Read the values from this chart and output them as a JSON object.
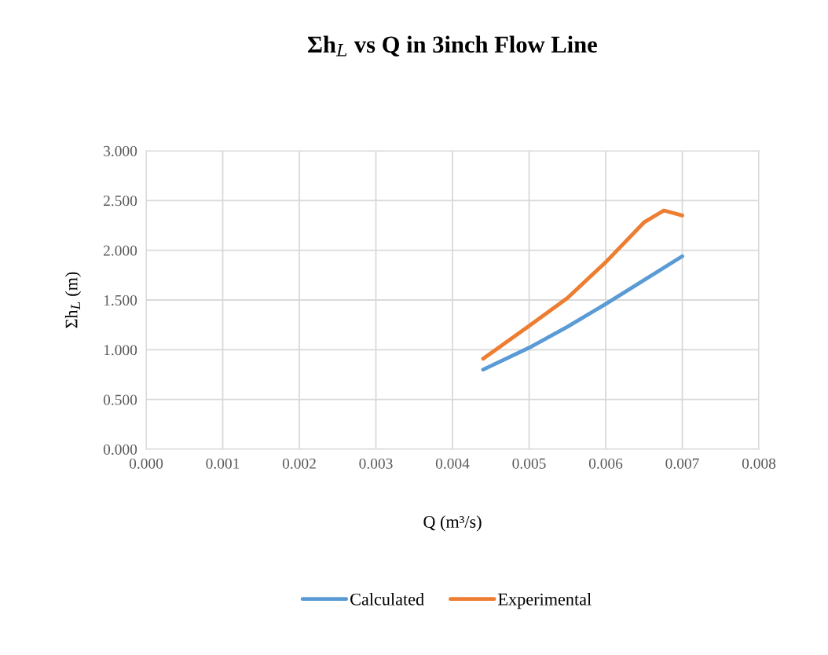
{
  "chart_data": {
    "type": "line",
    "title": "Σh$_{L}$ vs Q in 3inch Flow Line",
    "xlabel": "Q (m³/s)",
    "ylabel": "Σh$_{L}$ (m)",
    "series": [
      {
        "name": "Calculated",
        "color": "#5b9bd5",
        "x": [
          0.0044,
          0.005,
          0.0055,
          0.006,
          0.007
        ],
        "values": [
          0.8,
          1.02,
          1.23,
          1.46,
          1.94
        ]
      },
      {
        "name": "Experimental",
        "color": "#ed7d31",
        "x": [
          0.0044,
          0.005,
          0.0055,
          0.006,
          0.0065,
          0.00676,
          0.007
        ],
        "values": [
          0.91,
          1.24,
          1.52,
          1.88,
          2.28,
          2.4,
          2.35
        ]
      }
    ],
    "xlim": [
      0,
      0.008
    ],
    "ylim": [
      0,
      3
    ],
    "xticks": [
      {
        "value": 0,
        "label": "0.000"
      },
      {
        "value": 0.001,
        "label": "0.001"
      },
      {
        "value": 0.002,
        "label": "0.002"
      },
      {
        "value": 0.003,
        "label": "0.003"
      },
      {
        "value": 0.004,
        "label": "0.004"
      },
      {
        "value": 0.005,
        "label": "0.005"
      },
      {
        "value": 0.006,
        "label": "0.006"
      },
      {
        "value": 0.007,
        "label": "0.007"
      },
      {
        "value": 0.008,
        "label": "0.008"
      }
    ],
    "yticks": [
      {
        "value": 0,
        "label": "0.000"
      },
      {
        "value": 0.5,
        "label": "0.500"
      },
      {
        "value": 1,
        "label": "1.000"
      },
      {
        "value": 1.5,
        "label": "1.500"
      },
      {
        "value": 2,
        "label": "2.000"
      },
      {
        "value": 2.5,
        "label": "2.500"
      },
      {
        "value": 3,
        "label": "3.000"
      }
    ],
    "grid": true,
    "legend": "bottom",
    "marker": "none",
    "line_style": "solid"
  }
}
